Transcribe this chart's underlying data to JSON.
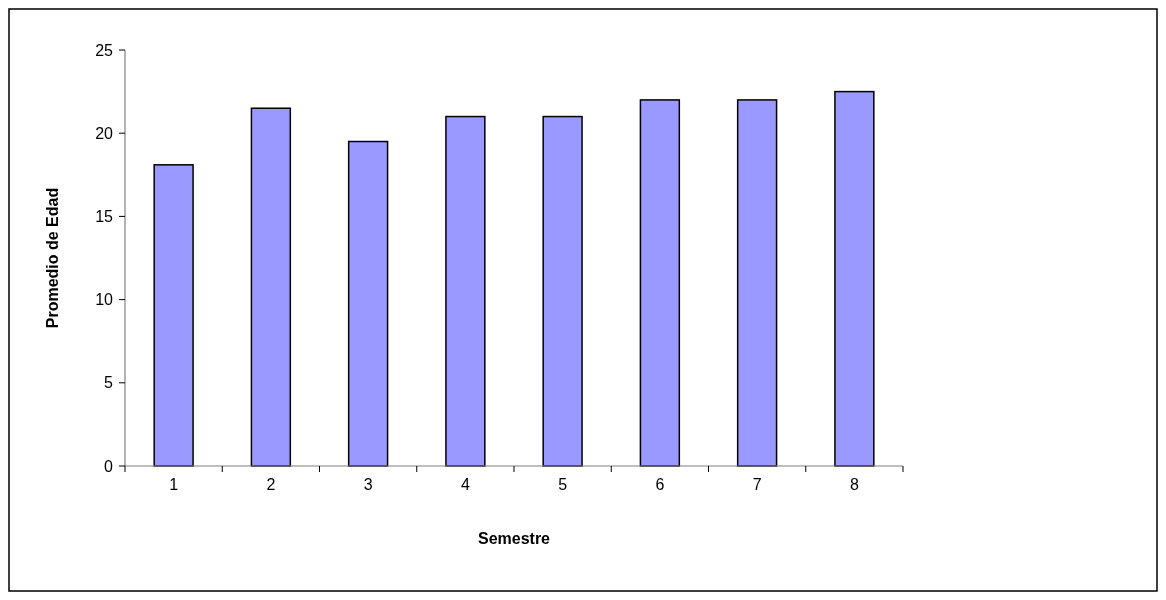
{
  "chart_data": {
    "type": "bar",
    "xlabel": "Semestre",
    "ylabel": "Promedio de Edad",
    "categories": [
      "1",
      "2",
      "3",
      "4",
      "5",
      "6",
      "7",
      "8"
    ],
    "values": [
      18.1,
      21.5,
      19.5,
      21.0,
      21.0,
      22.0,
      22.0,
      22.5
    ],
    "color": "#9999ff",
    "ylim": [
      0,
      25
    ],
    "yticks": [
      0,
      5,
      10,
      15,
      20,
      25
    ],
    "grid": false
  }
}
